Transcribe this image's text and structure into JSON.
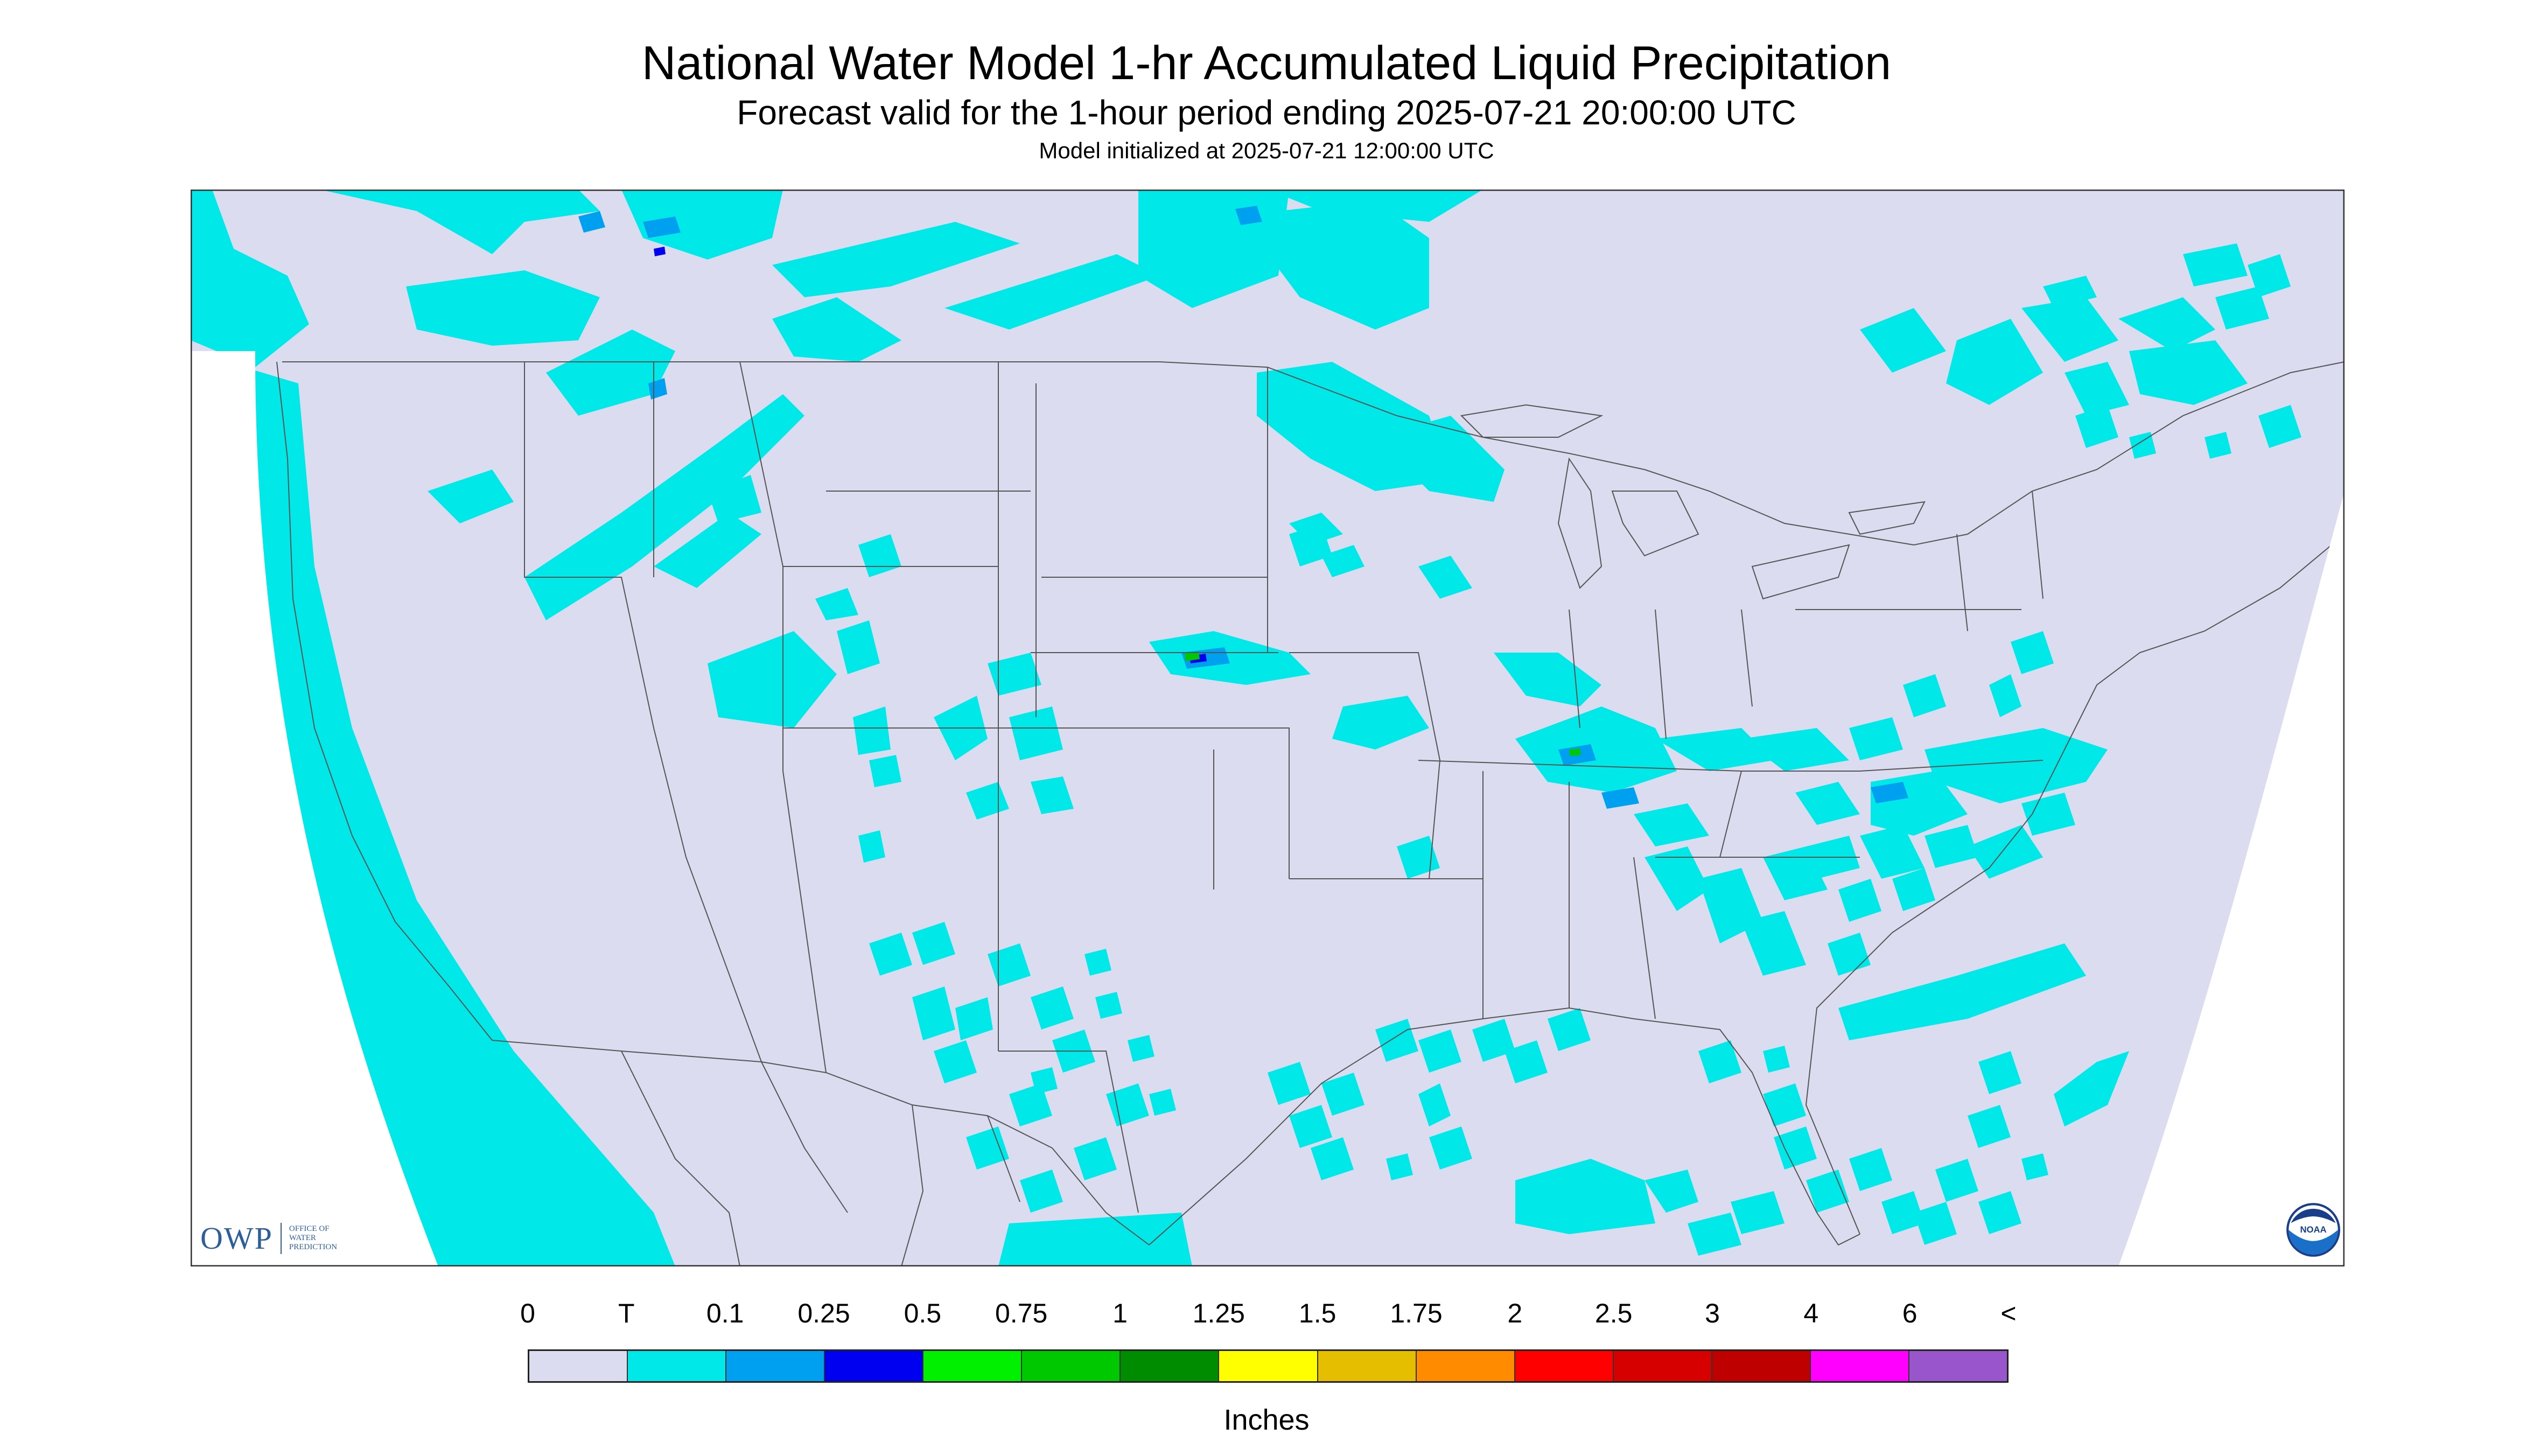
{
  "title": "National Water Model 1-hr Accumulated Liquid Precipitation",
  "subtitle": "Forecast valid for the 1-hour period ending 2025-07-21 20:00:00 UTC",
  "init_line": "Model initialized at 2025-07-21 12:00:00 UTC",
  "legend": {
    "labels": [
      "0",
      "T",
      "0.1",
      "0.25",
      "0.5",
      "0.75",
      "1",
      "1.25",
      "1.5",
      "1.75",
      "2",
      "2.5",
      "3",
      "4",
      "6",
      "<"
    ],
    "colors": [
      "#dcdcf0",
      "#00e8e8",
      "#00a0f0",
      "#0000f0",
      "#00f000",
      "#00c800",
      "#008c00",
      "#ffff00",
      "#e6be00",
      "#ff8c00",
      "#ff0000",
      "#d60000",
      "#be0000",
      "#ff00ff",
      "#9955cc"
    ],
    "units": "Inches"
  },
  "logos": {
    "owp_mark": "OWP",
    "owp_text": [
      "OFFICE OF",
      "WATER",
      "PREDICTION"
    ],
    "noaa": "NOAA"
  },
  "map": {
    "background_color": "#dcdcf0",
    "outside_domain_color": "#ffffff",
    "trace_color": "#00e8e8",
    "light_color": "#00a0f0",
    "moderate_color": "#0000f0",
    "heavy_color": "#00c800"
  }
}
